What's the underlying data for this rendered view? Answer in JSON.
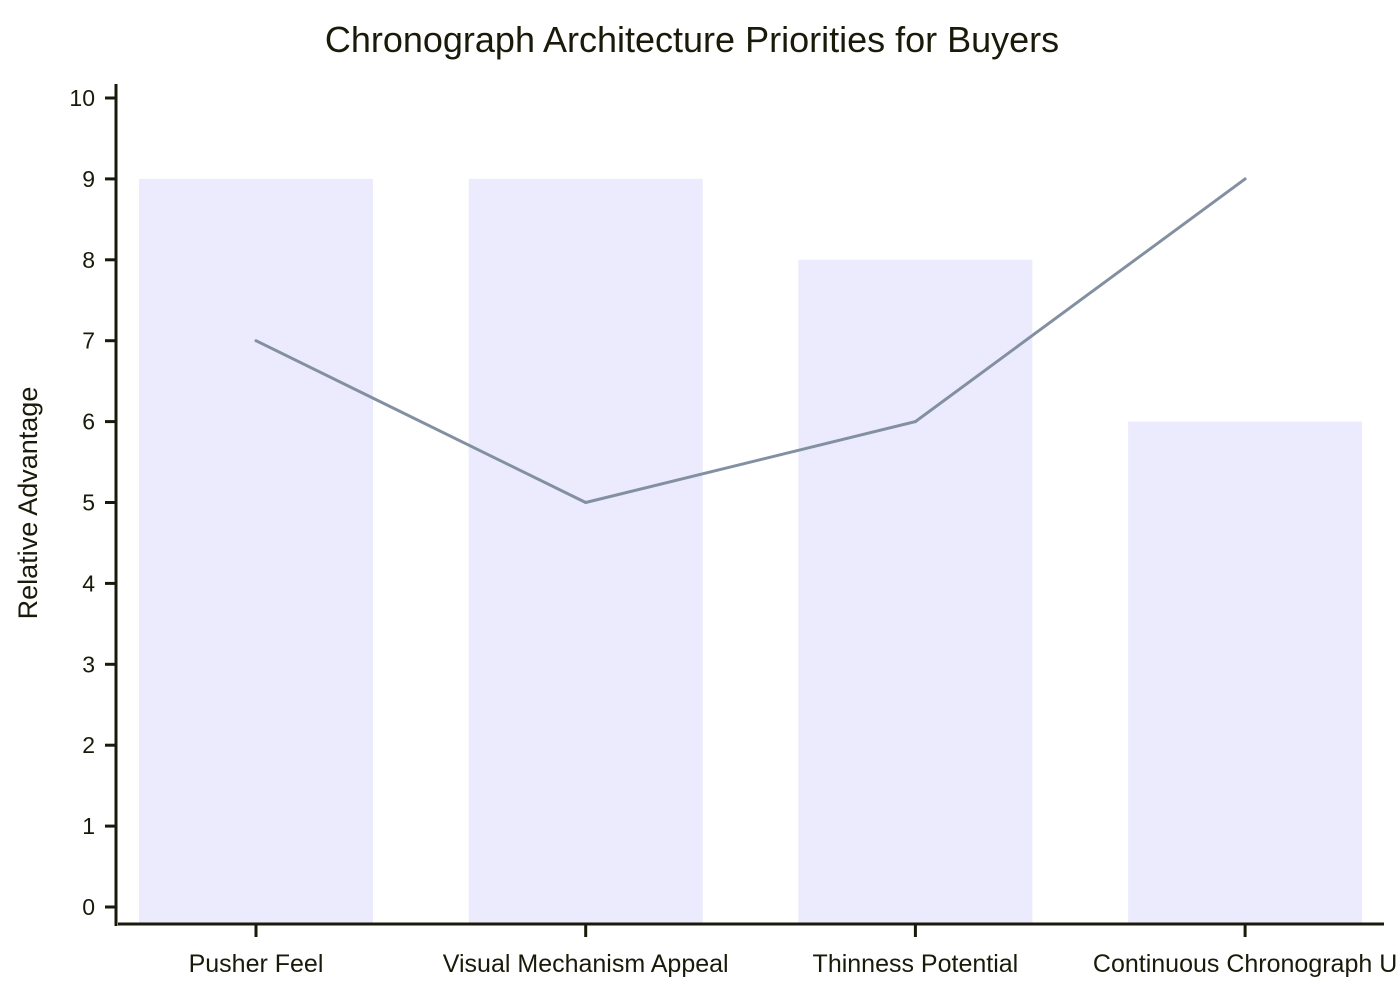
{
  "chart_data": {
    "type": "bar",
    "title": "Chronograph Architecture Priorities for Buyers",
    "xlabel": "",
    "ylabel": "Relative Advantage",
    "ylim": [
      0,
      10
    ],
    "yticks": [
      "0",
      "1",
      "2",
      "3",
      "4",
      "5",
      "6",
      "7",
      "8",
      "9",
      "10"
    ],
    "categories": [
      "Pusher Feel",
      "Visual Mechanism Appeal",
      "Thinness Potential",
      "Continuous Chronograph U"
    ],
    "series": [
      {
        "type": "bar",
        "values": [
          9,
          9,
          8,
          6
        ],
        "color": "#ebebfd"
      },
      {
        "type": "line",
        "values": [
          7,
          5,
          6,
          9
        ],
        "color": "#8390a2"
      }
    ],
    "grid": false,
    "legend": "none"
  }
}
